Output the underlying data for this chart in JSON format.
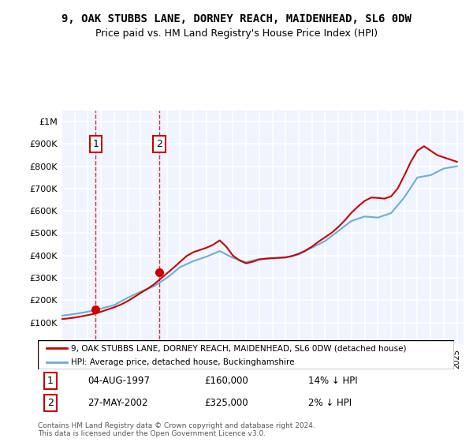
{
  "title": "9, OAK STUBBS LANE, DORNEY REACH, MAIDENHEAD, SL6 0DW",
  "subtitle": "Price paid vs. HM Land Registry's House Price Index (HPI)",
  "legend_line1": "9, OAK STUBBS LANE, DORNEY REACH, MAIDENHEAD, SL6 0DW (detached house)",
  "legend_line2": "HPI: Average price, detached house, Buckinghamshire",
  "footnote": "Contains HM Land Registry data © Crown copyright and database right 2024.\nThis data is licensed under the Open Government Licence v3.0.",
  "purchase1_label": "1",
  "purchase1_date": "04-AUG-1997",
  "purchase1_price": 160000,
  "purchase1_hpi": "14% ↓ HPI",
  "purchase2_label": "2",
  "purchase2_date": "27-MAY-2002",
  "purchase2_price": 325000,
  "purchase2_hpi": "2% ↓ HPI",
  "purchase1_year": 1997.59,
  "purchase2_year": 2002.41,
  "hpi_color": "#6baed6",
  "price_color": "#cc0000",
  "background_color": "#f0f4ff",
  "grid_color": "#ffffff",
  "ylim": [
    0,
    1050000
  ],
  "xlim_start": 1995,
  "xlim_end": 2025.5,
  "hpi_years": [
    1995,
    1996,
    1997,
    1998,
    1999,
    2000,
    2001,
    2002,
    2003,
    2004,
    2005,
    2006,
    2007,
    2008,
    2009,
    2010,
    2011,
    2012,
    2013,
    2014,
    2015,
    2016,
    2017,
    2018,
    2019,
    2020,
    2021,
    2022,
    2023,
    2024,
    2025
  ],
  "hpi_values": [
    130000,
    138000,
    148000,
    162000,
    178000,
    210000,
    238000,
    262000,
    300000,
    348000,
    375000,
    395000,
    420000,
    390000,
    370000,
    385000,
    388000,
    390000,
    405000,
    435000,
    465000,
    510000,
    555000,
    575000,
    570000,
    590000,
    660000,
    750000,
    760000,
    790000,
    800000
  ],
  "price_years": [
    1995,
    1995.5,
    1996,
    1996.5,
    1997,
    1997.5,
    1998,
    1998.5,
    1999,
    1999.5,
    2000,
    2000.5,
    2001,
    2001.5,
    2002,
    2002.5,
    2003,
    2003.5,
    2004,
    2004.5,
    2005,
    2005.5,
    2006,
    2006.5,
    2007,
    2007.5,
    2008,
    2008.5,
    2009,
    2009.5,
    2010,
    2010.5,
    2011,
    2011.5,
    2012,
    2012.5,
    2013,
    2013.5,
    2014,
    2014.5,
    2015,
    2015.5,
    2016,
    2016.5,
    2017,
    2017.5,
    2018,
    2018.5,
    2019,
    2019.5,
    2020,
    2020.5,
    2021,
    2021.5,
    2022,
    2022.5,
    2023,
    2023.5,
    2024,
    2024.5,
    2025
  ],
  "price_values": [
    115000,
    118000,
    122000,
    127000,
    133000,
    139000,
    148000,
    158000,
    168000,
    180000,
    195000,
    213000,
    232000,
    250000,
    270000,
    295000,
    320000,
    345000,
    372000,
    398000,
    415000,
    425000,
    435000,
    448000,
    468000,
    440000,
    400000,
    378000,
    365000,
    372000,
    382000,
    386000,
    388000,
    390000,
    392000,
    398000,
    408000,
    422000,
    440000,
    462000,
    482000,
    502000,
    528000,
    558000,
    592000,
    620000,
    645000,
    660000,
    658000,
    655000,
    665000,
    700000,
    758000,
    820000,
    870000,
    890000,
    870000,
    850000,
    840000,
    830000,
    820000
  ]
}
